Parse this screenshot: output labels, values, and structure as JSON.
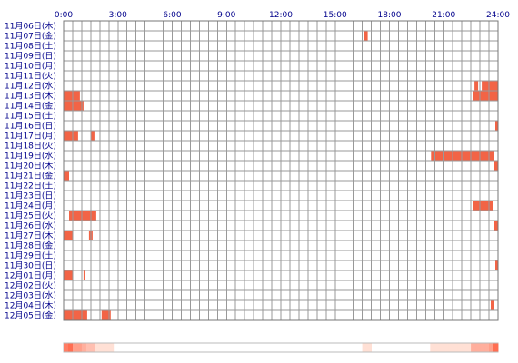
{
  "chart_data": {
    "type": "heatmap",
    "x_tick_labels": [
      "0:00",
      "3:00",
      "6:00",
      "9:00",
      "12:00",
      "15:00",
      "18:00",
      "21:00",
      "24:00"
    ],
    "xlim": [
      0,
      24
    ],
    "bar_color": "#f26446",
    "bar_color_light": "#f59a80",
    "grid_color": "#999999",
    "rows": [
      {
        "date": "11月06日(木)",
        "intervals": []
      },
      {
        "date": "11月07日(金)",
        "intervals": [
          [
            16.6,
            16.8
          ]
        ]
      },
      {
        "date": "11月08日(土)",
        "intervals": []
      },
      {
        "date": "11月09日(日)",
        "intervals": []
      },
      {
        "date": "11月10日(月)",
        "intervals": []
      },
      {
        "date": "11月11日(火)",
        "intervals": []
      },
      {
        "date": "11月12日(水)",
        "intervals": [
          [
            22.7,
            22.9
          ],
          [
            23.1,
            24.0
          ]
        ]
      },
      {
        "date": "11月13日(木)",
        "intervals": [
          [
            0.0,
            0.9
          ],
          [
            22.6,
            24.0
          ]
        ]
      },
      {
        "date": "11月14日(金)",
        "intervals": [
          [
            0.0,
            1.1
          ]
        ]
      },
      {
        "date": "11月15日(土)",
        "intervals": []
      },
      {
        "date": "11月16日(日)",
        "intervals": [
          [
            23.85,
            24.0
          ]
        ]
      },
      {
        "date": "11月17日(月)",
        "intervals": [
          [
            0.0,
            0.8
          ],
          [
            1.5,
            1.7
          ]
        ]
      },
      {
        "date": "11月18日(火)",
        "intervals": []
      },
      {
        "date": "11月19日(水)",
        "intervals": [
          [
            20.3,
            23.8
          ]
        ]
      },
      {
        "date": "11月20日(木)",
        "intervals": [
          [
            23.8,
            24.0
          ]
        ]
      },
      {
        "date": "11月21日(金)",
        "intervals": [
          [
            0.0,
            0.3
          ]
        ]
      },
      {
        "date": "11月22日(土)",
        "intervals": []
      },
      {
        "date": "11月23日(日)",
        "intervals": []
      },
      {
        "date": "11月24日(月)",
        "intervals": [
          [
            22.6,
            23.7
          ]
        ]
      },
      {
        "date": "11月25日(火)",
        "intervals": [
          [
            0.3,
            1.8
          ]
        ]
      },
      {
        "date": "11月26日(水)",
        "intervals": [
          [
            23.8,
            24.0
          ]
        ]
      },
      {
        "date": "11月27日(木)",
        "intervals": [
          [
            0.0,
            0.5
          ],
          [
            1.4,
            1.6
          ]
        ]
      },
      {
        "date": "11月28日(金)",
        "intervals": []
      },
      {
        "date": "11月29日(土)",
        "intervals": []
      },
      {
        "date": "11月30日(日)",
        "intervals": [
          [
            23.85,
            24.0
          ]
        ]
      },
      {
        "date": "12月01日(月)",
        "intervals": [
          [
            0.0,
            0.5
          ],
          [
            1.1,
            1.2
          ]
        ]
      },
      {
        "date": "12月02日(火)",
        "intervals": []
      },
      {
        "date": "12月03日(水)",
        "intervals": []
      },
      {
        "date": "12月04日(木)",
        "intervals": [
          [
            23.6,
            23.8
          ]
        ]
      },
      {
        "date": "12月05日(金)",
        "intervals": [
          [
            0.0,
            1.3
          ],
          [
            2.1,
            2.6
          ]
        ]
      }
    ],
    "summary_strip": {
      "bins_per_hour": 4,
      "note_colors": [
        "#fbe5dc",
        "#f8c7b4",
        "#f4a98e"
      ]
    }
  }
}
